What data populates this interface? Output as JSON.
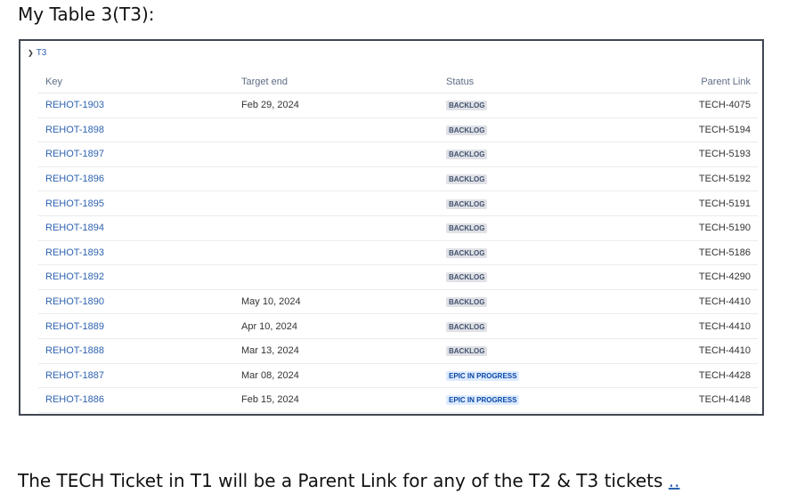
{
  "heading": "My Table 3(T3):",
  "table": {
    "toggle_label": "T3",
    "columns": [
      "Key",
      "Target end",
      "Status",
      "Parent Link"
    ],
    "rows": [
      {
        "key": "REHOT-1903",
        "target_end": "Feb 29, 2024",
        "status": "BACKLOG",
        "parent": "TECH-4075"
      },
      {
        "key": "REHOT-1898",
        "target_end": "",
        "status": "BACKLOG",
        "parent": "TECH-5194"
      },
      {
        "key": "REHOT-1897",
        "target_end": "",
        "status": "BACKLOG",
        "parent": "TECH-5193"
      },
      {
        "key": "REHOT-1896",
        "target_end": "",
        "status": "BACKLOG",
        "parent": "TECH-5192"
      },
      {
        "key": "REHOT-1895",
        "target_end": "",
        "status": "BACKLOG",
        "parent": "TECH-5191"
      },
      {
        "key": "REHOT-1894",
        "target_end": "",
        "status": "BACKLOG",
        "parent": "TECH-5190"
      },
      {
        "key": "REHOT-1893",
        "target_end": "",
        "status": "BACKLOG",
        "parent": "TECH-5186"
      },
      {
        "key": "REHOT-1892",
        "target_end": "",
        "status": "BACKLOG",
        "parent": "TECH-4290"
      },
      {
        "key": "REHOT-1890",
        "target_end": "May 10, 2024",
        "status": "BACKLOG",
        "parent": "TECH-4410"
      },
      {
        "key": "REHOT-1889",
        "target_end": "Apr 10, 2024",
        "status": "BACKLOG",
        "parent": "TECH-4410"
      },
      {
        "key": "REHOT-1888",
        "target_end": "Mar 13, 2024",
        "status": "BACKLOG",
        "parent": "TECH-4410"
      },
      {
        "key": "REHOT-1887",
        "target_end": "Mar 08, 2024",
        "status": "EPIC IN PROGRESS",
        "parent": "TECH-4428"
      },
      {
        "key": "REHOT-1886",
        "target_end": "Feb 15, 2024",
        "status": "EPIC IN PROGRESS",
        "parent": "TECH-4148"
      }
    ]
  },
  "footer": {
    "text": "The TECH Ticket in T1 will be a Parent Link for any of the T2 & T3 tickets",
    "link": ".."
  },
  "colors": {
    "link": "#2f63b0",
    "backlog_bg": "#dfe1e6",
    "in_progress_bg": "#deebff",
    "border": "#3f4650"
  }
}
